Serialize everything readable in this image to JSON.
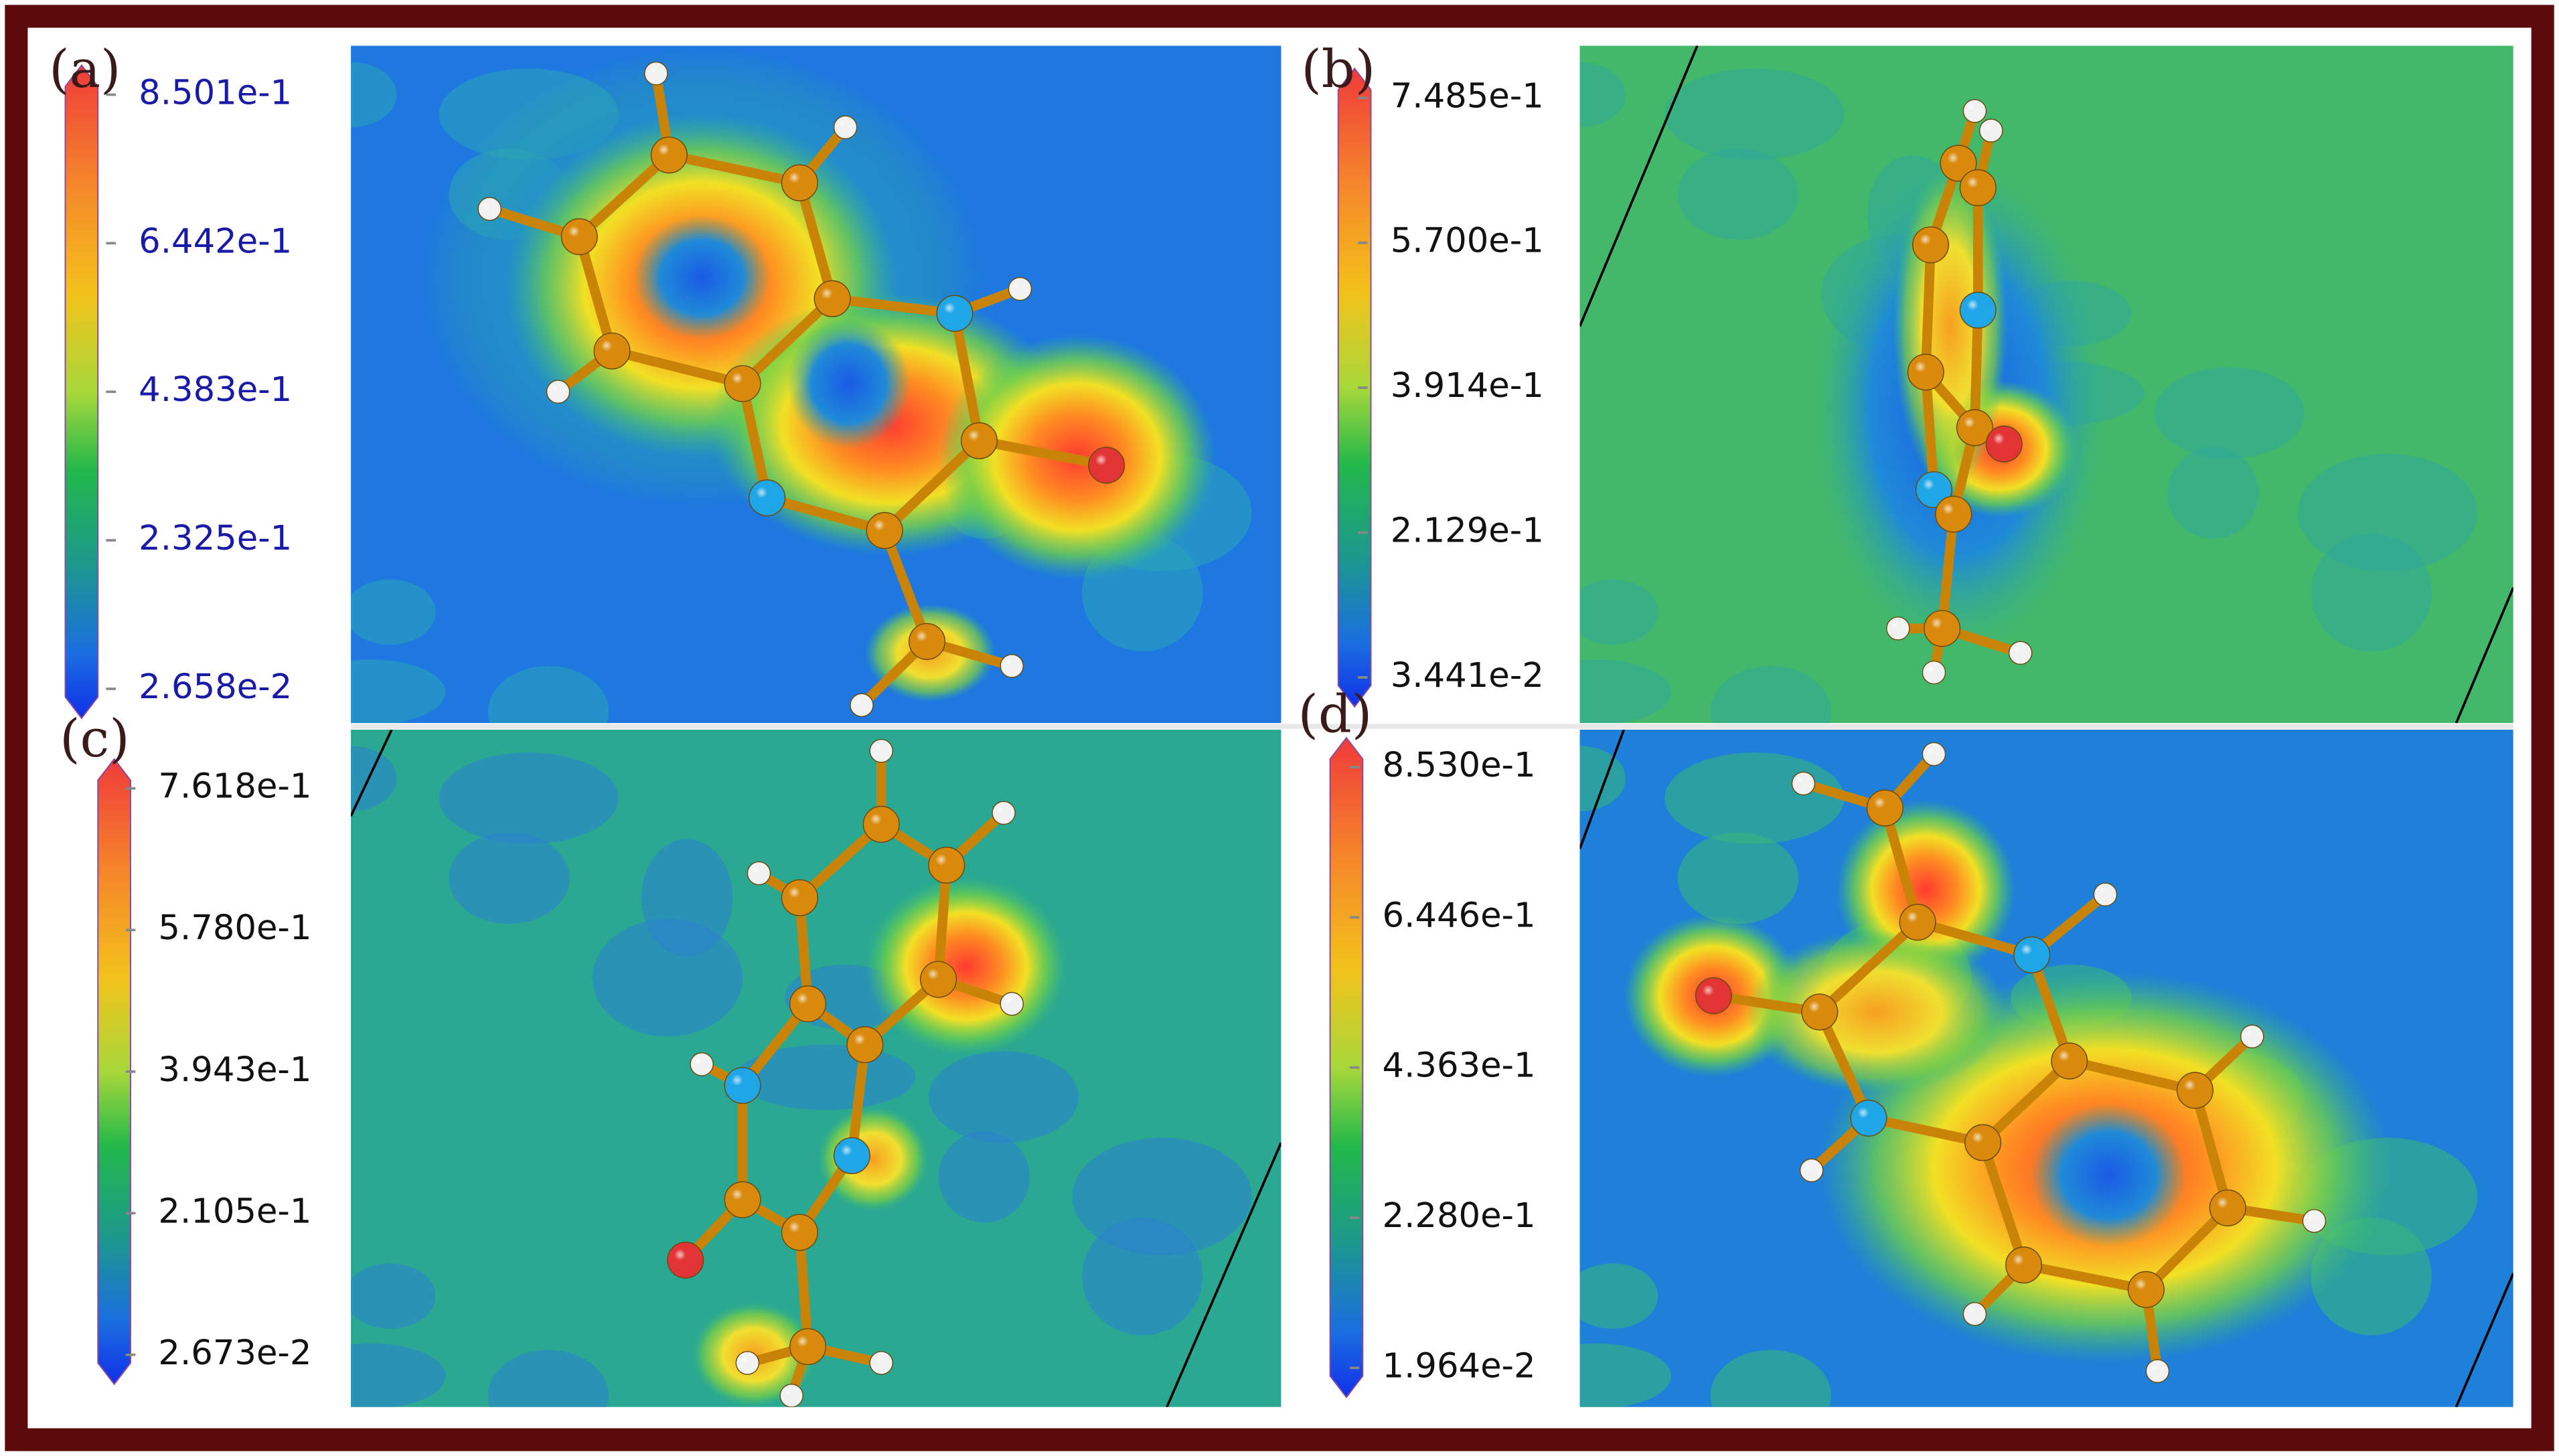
{
  "panels": [
    {
      "label": "(a)",
      "colorbar_ticks": [
        "8.501e-1",
        "6.442e-1",
        "4.383e-1",
        "2.325e-1",
        "2.658e-2"
      ]
    },
    {
      "label": "(b)",
      "colorbar_ticks": [
        "7.485e-1",
        "5.700e-1",
        "3.914e-1",
        "2.129e-1",
        "3.441e-2"
      ]
    },
    {
      "label": "(c)",
      "colorbar_ticks": [
        "7.618e-1",
        "5.780e-1",
        "3.943e-1",
        "2.105e-1",
        "2.673e-2"
      ]
    },
    {
      "label": "(d)",
      "colorbar_ticks": [
        "8.530e-1",
        "6.446e-1",
        "4.363e-1",
        "2.280e-1",
        "1.964e-2"
      ]
    }
  ]
}
